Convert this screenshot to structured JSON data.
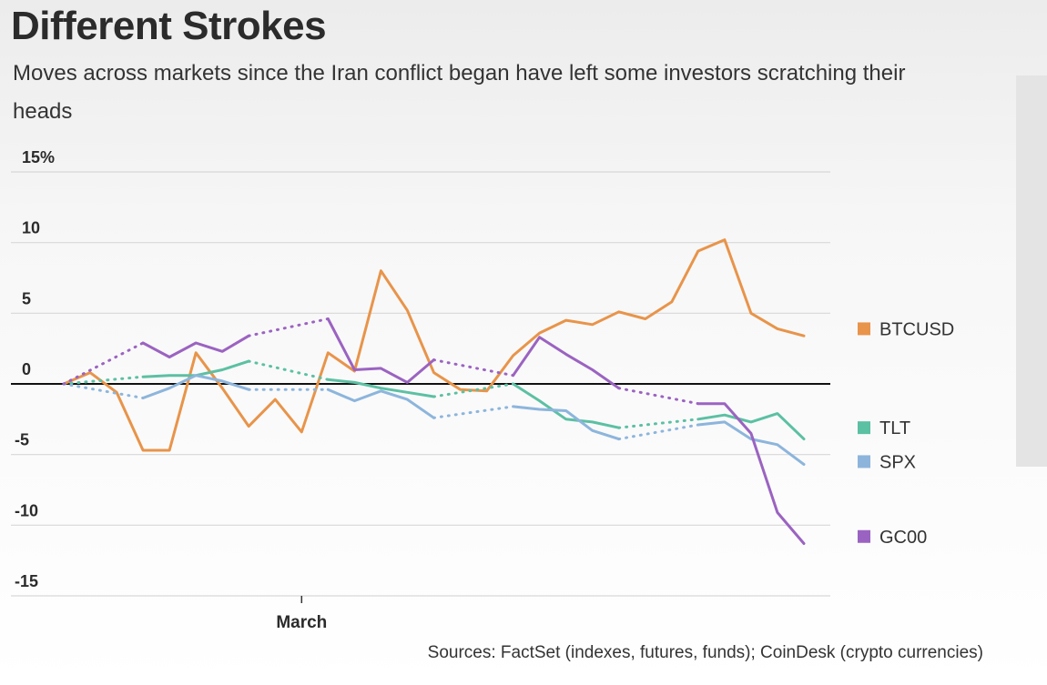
{
  "title": "Different Strokes",
  "subtitle": "Moves across markets since the Iran conflict began have left some investors scratching their heads",
  "source": "Sources: FactSet (indexes, futures, funds); CoinDesk (crypto currencies)",
  "chart_data": {
    "type": "line",
    "ylim": [
      -15,
      15
    ],
    "xlim": [
      0,
      29
    ],
    "yticks": [
      15,
      10,
      5,
      0,
      -5,
      -10,
      -15
    ],
    "ytick_labels": [
      "15%",
      "10",
      "5",
      "0",
      "-5",
      "-10",
      "-15"
    ],
    "xticks": [
      {
        "x": 9,
        "label": "March"
      }
    ],
    "grid": true,
    "zero_line": true,
    "legend_position": "right",
    "series": [
      {
        "name": "BTCUSD",
        "color": "#e8944a",
        "points": [
          [
            0,
            0
          ],
          [
            1,
            0.8
          ],
          [
            2,
            -0.6
          ],
          [
            3,
            -4.7
          ],
          [
            4,
            -4.7
          ],
          [
            5,
            2.2
          ],
          [
            6,
            -0.3
          ],
          [
            7,
            -3.0
          ],
          [
            8,
            -1.1
          ],
          [
            9,
            -3.4
          ],
          [
            10,
            2.2
          ],
          [
            11,
            0.9
          ],
          [
            12,
            8.0
          ],
          [
            13,
            5.2
          ],
          [
            14,
            0.8
          ],
          [
            15,
            -0.4
          ],
          [
            16,
            -0.5
          ],
          [
            17,
            2.0
          ],
          [
            18,
            3.6
          ],
          [
            19,
            4.5
          ],
          [
            20,
            4.2
          ],
          [
            21,
            5.1
          ],
          [
            22,
            4.6
          ],
          [
            23,
            5.8
          ],
          [
            24,
            9.4
          ],
          [
            25,
            10.2
          ],
          [
            26,
            5.0
          ],
          [
            27,
            3.9
          ],
          [
            28,
            3.4
          ]
        ],
        "dashed_segments": []
      },
      {
        "name": "TLT",
        "color": "#5cc0a3",
        "points": [
          [
            0,
            0
          ],
          [
            3,
            0.5
          ],
          [
            4,
            0.6
          ],
          [
            5,
            0.6
          ],
          [
            6,
            1.0
          ],
          [
            7,
            1.6
          ],
          [
            10,
            0.3
          ],
          [
            11,
            0.1
          ],
          [
            12,
            -0.3
          ],
          [
            13,
            -0.6
          ],
          [
            14,
            -0.9
          ],
          [
            17,
            0
          ],
          [
            18,
            -1.2
          ],
          [
            19,
            -2.5
          ],
          [
            20,
            -2.7
          ],
          [
            21,
            -3.1
          ],
          [
            24,
            -2.5
          ],
          [
            25,
            -2.2
          ],
          [
            26,
            -2.7
          ],
          [
            27,
            -2.1
          ],
          [
            28,
            -3.9
          ]
        ],
        "dashed_segments": [
          [
            0,
            3
          ],
          [
            7,
            10
          ],
          [
            14,
            17
          ],
          [
            21,
            24
          ]
        ]
      },
      {
        "name": "SPX",
        "color": "#8db5dc",
        "points": [
          [
            0,
            0
          ],
          [
            3,
            -1.0
          ],
          [
            4,
            -0.3
          ],
          [
            5,
            0.6
          ],
          [
            6,
            0.2
          ],
          [
            7,
            -0.4
          ],
          [
            10,
            -0.4
          ],
          [
            11,
            -1.2
          ],
          [
            12,
            -0.5
          ],
          [
            13,
            -1.1
          ],
          [
            14,
            -2.4
          ],
          [
            17,
            -1.6
          ],
          [
            18,
            -1.8
          ],
          [
            19,
            -1.9
          ],
          [
            20,
            -3.3
          ],
          [
            21,
            -3.9
          ],
          [
            24,
            -2.9
          ],
          [
            25,
            -2.7
          ],
          [
            26,
            -3.9
          ],
          [
            27,
            -4.3
          ],
          [
            28,
            -5.7
          ]
        ],
        "dashed_segments": [
          [
            0,
            3
          ],
          [
            7,
            10
          ],
          [
            14,
            17
          ],
          [
            21,
            24
          ]
        ]
      },
      {
        "name": "GC00",
        "color": "#9b63c1",
        "points": [
          [
            0,
            0
          ],
          [
            3,
            2.9
          ],
          [
            4,
            1.9
          ],
          [
            5,
            2.9
          ],
          [
            6,
            2.3
          ],
          [
            7,
            3.4
          ],
          [
            10,
            4.6
          ],
          [
            11,
            1.0
          ],
          [
            12,
            1.1
          ],
          [
            13,
            0.1
          ],
          [
            14,
            1.7
          ],
          [
            17,
            0.6
          ],
          [
            18,
            3.3
          ],
          [
            19,
            2.1
          ],
          [
            20,
            1.0
          ],
          [
            21,
            -0.3
          ],
          [
            24,
            -1.4
          ],
          [
            25,
            -1.4
          ],
          [
            26,
            -3.5
          ],
          [
            27,
            -9.1
          ],
          [
            28,
            -11.3
          ]
        ],
        "dashed_segments": [
          [
            0,
            3
          ],
          [
            7,
            10
          ],
          [
            14,
            17
          ],
          [
            21,
            24
          ]
        ]
      }
    ],
    "legend": [
      {
        "name": "BTCUSD",
        "color": "#e8944a",
        "y": 3.9
      },
      {
        "name": "TLT",
        "color": "#5cc0a3",
        "y": -3.1
      },
      {
        "name": "SPX",
        "color": "#8db5dc",
        "y": -5.5
      },
      {
        "name": "GC00",
        "color": "#9b63c1",
        "y": -10.8
      }
    ]
  }
}
